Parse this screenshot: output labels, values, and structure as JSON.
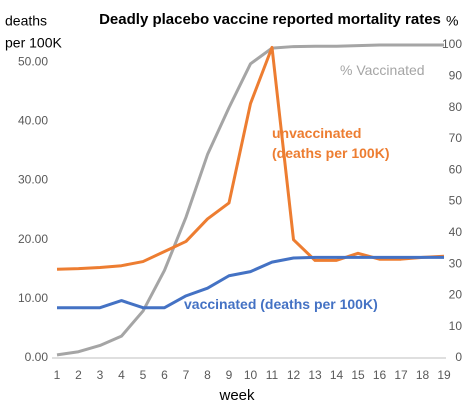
{
  "chart_data": {
    "type": "line",
    "title": "Deadly placebo vaccine reported mortality rates",
    "ylabel": [
      "deaths",
      "per 100K"
    ],
    "y2label": "%",
    "xlabel": "week",
    "categories": [
      "1",
      "2",
      "3",
      "4",
      "5",
      "6",
      "7",
      "8",
      "9",
      "10",
      "11",
      "12",
      "13",
      "14",
      "15",
      "16",
      "17",
      "18",
      "19"
    ],
    "series": [
      {
        "name": "% Vaccinated",
        "color": "#a5a5a5",
        "axis": "y2",
        "values": [
          1,
          2,
          4,
          7,
          15,
          28,
          45,
          65,
          80,
          94,
          99,
          99.5,
          99.6,
          99.6,
          99.8,
          100,
          100,
          100,
          100
        ]
      },
      {
        "name": "unvaccinated (deaths per 100K)",
        "color": "#ed7d31",
        "values": [
          15.0,
          15.1,
          15.3,
          15.6,
          16.3,
          18.0,
          19.7,
          23.5,
          26.2,
          43.0,
          52.5,
          20.0,
          16.5,
          16.5,
          17.7,
          16.7,
          16.7,
          17.0,
          17.2
        ]
      },
      {
        "name": "vaccinated (deaths per 100K)",
        "color": "#4472c4",
        "values": [
          8.5,
          8.5,
          8.5,
          9.7,
          8.5,
          8.5,
          10.5,
          11.8,
          13.9,
          14.6,
          16.2,
          16.9,
          17.0,
          17.0,
          17.0,
          17.0,
          17.0,
          17.0,
          17.0
        ]
      }
    ],
    "ylim": [
      0,
      52.9
    ],
    "yticks": [
      {
        "value": 0,
        "label": "0.00"
      },
      {
        "value": 10,
        "label": "10.00"
      },
      {
        "value": 20,
        "label": "20.00"
      },
      {
        "value": 30,
        "label": "30.00"
      },
      {
        "value": 40,
        "label": "40.00"
      },
      {
        "value": 50,
        "label": "50.00"
      }
    ],
    "y2lim": [
      0,
      100
    ],
    "y2ticks": [
      0,
      10,
      20,
      30,
      40,
      50,
      60,
      70,
      80,
      90,
      100
    ],
    "grid": false
  }
}
